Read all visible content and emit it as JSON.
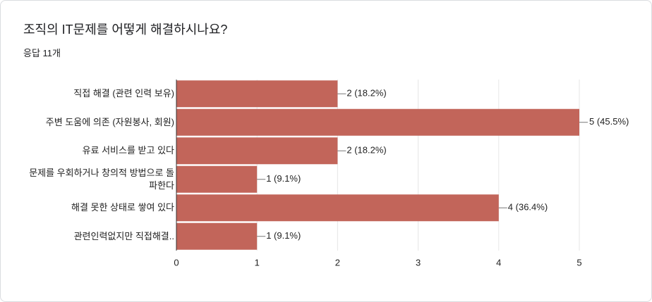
{
  "chart_data": {
    "type": "bar",
    "orientation": "horizontal",
    "title": "조직의 IT문제를 어떻게 해결하시나요?",
    "subtitle": "응답 11개",
    "categories": [
      "직접 해결 (관련 인력 보유)",
      "주변 도움에 의존 (자원봉사, 회원)",
      "유료 서비스를 받고 있다",
      "문제를 우회하거나 창의적 방법으로 돌파한다",
      "해결 못한 상태로 쌓여 있다",
      "관련인력없지만 직접해결.."
    ],
    "values": [
      2,
      5,
      2,
      1,
      4,
      1
    ],
    "value_labels": [
      "2 (18.2%)",
      "5 (45.5%)",
      "2 (18.2%)",
      "1 (9.1%)",
      "4 (36.4%)",
      "1 (9.1%)"
    ],
    "color": "#c2655a",
    "xlim": [
      0,
      5
    ],
    "xticks": [
      0,
      1,
      2,
      3,
      4,
      5
    ],
    "grid": true
  }
}
